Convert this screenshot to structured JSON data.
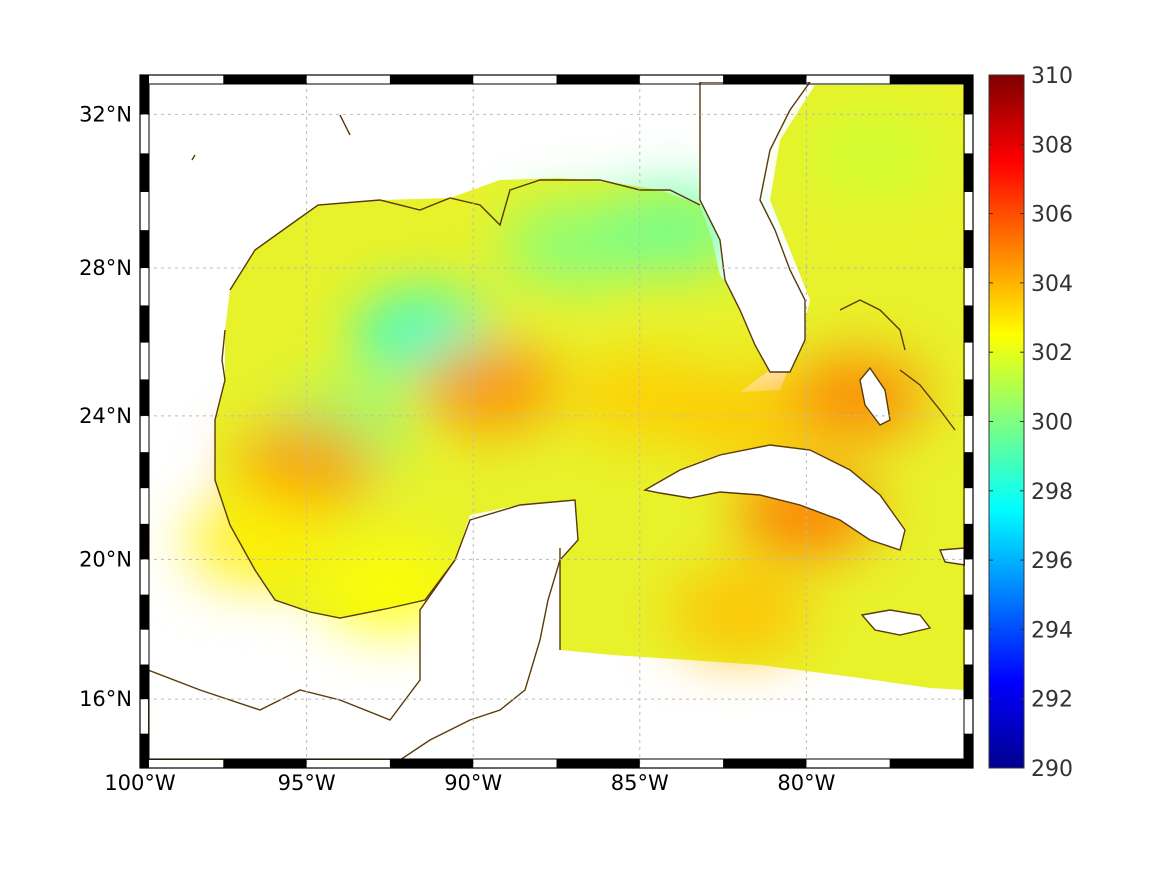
{
  "map": {
    "type": "heatmap",
    "projection": "mercator",
    "title": "",
    "xlabel": "",
    "ylabel": "",
    "lon_range": [
      -100,
      -75
    ],
    "lat_range": [
      14,
      33
    ],
    "lon_ticks": [
      -100,
      -95,
      -90,
      -85,
      -80
    ],
    "lon_tick_labels": [
      "100°W",
      "95°W",
      "90°W",
      "85°W",
      "80°W"
    ],
    "lat_ticks": [
      16,
      20,
      24,
      28,
      32
    ],
    "lat_tick_labels": [
      "16°N",
      "20°N",
      "24°N",
      "28°N",
      "32°N"
    ],
    "grid": true,
    "coastline_color": "#5a3a0a",
    "land_color": "#ffffff",
    "colormap": "jet"
  },
  "colorbar": {
    "range": [
      290,
      310
    ],
    "ticks": [
      290,
      292,
      294,
      296,
      298,
      300,
      302,
      304,
      306,
      308,
      310
    ],
    "tick_labels": [
      "290",
      "292",
      "294",
      "296",
      "298",
      "300",
      "302",
      "304",
      "306",
      "308",
      "310"
    ],
    "placement": "right"
  },
  "chart_data": {
    "type": "heatmap",
    "variable_range": [
      290,
      310
    ],
    "regions": [
      {
        "lon": -91.5,
        "lat": 26.2,
        "value": 298.2
      },
      {
        "lon": -94.0,
        "lat": 23.6,
        "value": 300.0
      },
      {
        "lon": -87.0,
        "lat": 28.6,
        "value": 300.0
      },
      {
        "lon": -84.0,
        "lat": 29.0,
        "value": 299.5
      },
      {
        "lon": -95.0,
        "lat": 22.7,
        "value": 304.5
      },
      {
        "lon": -89.5,
        "lat": 24.8,
        "value": 304.8
      },
      {
        "lon": -85.0,
        "lat": 24.5,
        "value": 303.5
      },
      {
        "lon": -82.0,
        "lat": 24.0,
        "value": 303.6
      },
      {
        "lon": -78.5,
        "lat": 24.5,
        "value": 305.0
      },
      {
        "lon": -80.0,
        "lat": 21.3,
        "value": 305.2
      },
      {
        "lon": -82.0,
        "lat": 18.5,
        "value": 303.8
      },
      {
        "lon": -78.0,
        "lat": 31.0,
        "value": 301.5
      },
      {
        "lon": -96.5,
        "lat": 20.5,
        "value": 302.8
      },
      {
        "lon": -92.5,
        "lat": 19.2,
        "value": 302.5
      }
    ]
  }
}
